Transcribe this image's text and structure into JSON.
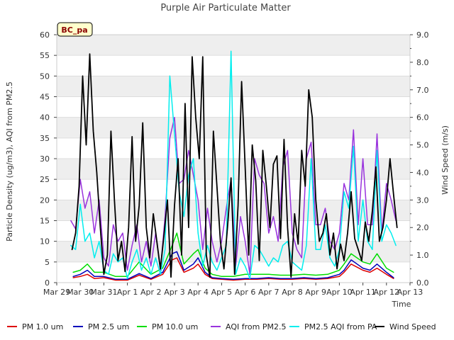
{
  "chart_data": {
    "type": "line",
    "title": "Purple Air Particulate Matter",
    "badge": "BC_pa",
    "xlabel": "Time",
    "ylabel_left": "Particle Density (ug/m3), AQI from PM2.5",
    "ylabel_right": "Wind Speed (m/s)",
    "ylim_left": [
      0,
      60
    ],
    "ylim_right": [
      0,
      9
    ],
    "yticks_left": [
      "0",
      "5",
      "10",
      "15",
      "20",
      "25",
      "30",
      "35",
      "40",
      "45",
      "50",
      "55",
      "60"
    ],
    "yticks_right": [
      "0.0",
      "1.0",
      "2.0",
      "3.0",
      "4.0",
      "5.0",
      "6.0",
      "7.0",
      "8.0",
      "9.0"
    ],
    "xlim_days": [
      0,
      15
    ],
    "xticks": [
      "Mar 29",
      "Mar 30",
      "Mar 31",
      "Apr 1",
      "Apr 2",
      "Apr 3",
      "Apr 4",
      "Apr 5",
      "Apr 6",
      "Apr 7",
      "Apr 8",
      "Apr 9",
      "Apr 10",
      "Apr 11",
      "Apr 12",
      "Apr 13"
    ],
    "series": [
      {
        "name": "PM 1.0 um",
        "color": "#dd0000",
        "axis": "left",
        "x": [
          0.7,
          1.0,
          1.3,
          1.6,
          2.0,
          2.5,
          3.0,
          3.5,
          4.0,
          4.5,
          4.9,
          5.1,
          5.4,
          5.8,
          6.0,
          6.3,
          6.6,
          7.0,
          7.5,
          8.0,
          8.5,
          9.0,
          9.5,
          10.0,
          10.5,
          11.0,
          11.5,
          12.0,
          12.2,
          12.5,
          13.0,
          13.3,
          13.6,
          14.0,
          14.3
        ],
        "y": [
          1.2,
          1.5,
          2.0,
          1.0,
          1.2,
          0.6,
          0.6,
          1.8,
          0.8,
          2.0,
          5.5,
          6.0,
          2.5,
          3.5,
          4.5,
          2.0,
          1.0,
          0.8,
          0.6,
          0.8,
          0.8,
          1.0,
          0.8,
          0.8,
          1.0,
          0.8,
          1.0,
          1.5,
          2.5,
          4.5,
          3.0,
          2.5,
          3.5,
          2.0,
          1.0
        ]
      },
      {
        "name": "PM 2.5 um",
        "color": "#0000bb",
        "axis": "left",
        "x": [
          0.7,
          1.0,
          1.3,
          1.6,
          2.0,
          2.5,
          3.0,
          3.5,
          4.0,
          4.5,
          4.9,
          5.1,
          5.4,
          5.8,
          6.0,
          6.3,
          6.6,
          7.0,
          7.5,
          8.0,
          8.5,
          9.0,
          9.5,
          10.0,
          10.5,
          11.0,
          11.5,
          12.0,
          12.2,
          12.5,
          13.0,
          13.3,
          13.6,
          14.0,
          14.3
        ],
        "y": [
          1.5,
          2.0,
          3.0,
          1.5,
          1.5,
          0.8,
          0.8,
          2.2,
          1.0,
          2.5,
          7.0,
          7.5,
          3.0,
          4.5,
          6.0,
          2.5,
          1.2,
          1.0,
          0.8,
          1.0,
          1.0,
          1.2,
          1.0,
          1.0,
          1.2,
          1.0,
          1.2,
          2.0,
          3.0,
          5.5,
          3.5,
          3.0,
          4.5,
          2.5,
          1.2
        ]
      },
      {
        "name": "PM 10.0 um",
        "color": "#00dd00",
        "axis": "left",
        "x": [
          0.7,
          1.0,
          1.3,
          1.6,
          2.0,
          2.5,
          3.0,
          3.5,
          4.0,
          4.5,
          4.9,
          5.1,
          5.4,
          5.8,
          6.0,
          6.3,
          6.6,
          7.0,
          7.5,
          8.0,
          8.5,
          9.0,
          9.5,
          10.0,
          10.5,
          11.0,
          11.5,
          12.0,
          12.2,
          12.5,
          13.0,
          13.3,
          13.6,
          14.0,
          14.3
        ],
        "y": [
          2.5,
          3.0,
          4.5,
          2.5,
          2.5,
          1.5,
          1.5,
          5.0,
          2.0,
          3.5,
          9.0,
          12.0,
          4.5,
          7.0,
          8.0,
          3.5,
          2.0,
          1.5,
          1.5,
          2.0,
          2.0,
          2.0,
          1.8,
          1.8,
          2.0,
          1.8,
          2.0,
          3.0,
          4.5,
          7.0,
          5.0,
          4.5,
          7.0,
          3.5,
          2.5
        ]
      },
      {
        "name": "AQI from PM2.5",
        "color": "#9933dd",
        "axis": "left",
        "x": [
          0.6,
          0.8,
          1.0,
          1.2,
          1.4,
          1.6,
          1.8,
          2.0,
          2.2,
          2.4,
          2.6,
          2.8,
          3.0,
          3.2,
          3.4,
          3.6,
          3.8,
          4.0,
          4.2,
          4.4,
          4.6,
          4.8,
          5.0,
          5.2,
          5.4,
          5.6,
          5.8,
          6.0,
          6.2,
          6.4,
          6.6,
          6.8,
          7.0,
          7.2,
          7.4,
          7.6,
          7.8,
          8.0,
          8.2,
          8.4,
          8.6,
          8.8,
          9.0,
          9.2,
          9.4,
          9.6,
          9.8,
          10.0,
          10.2,
          10.4,
          10.6,
          10.8,
          11.0,
          11.2,
          11.4,
          11.6,
          11.8,
          12.0,
          12.2,
          12.4,
          12.6,
          12.8,
          13.0,
          13.2,
          13.4,
          13.6,
          13.8,
          14.0,
          14.2,
          14.4
        ],
        "y": [
          15,
          13,
          25,
          18,
          22,
          12,
          20,
          6,
          4,
          14,
          10,
          12,
          3,
          9,
          14,
          5,
          10,
          4,
          12,
          3,
          16,
          35,
          40,
          24,
          25,
          32,
          26,
          20,
          8,
          18,
          10,
          5,
          10,
          18,
          25,
          4,
          16,
          10,
          2,
          30,
          26,
          24,
          12,
          16,
          10,
          28,
          32,
          12,
          8,
          6,
          30,
          34,
          14,
          14,
          18,
          10,
          8,
          12,
          24,
          20,
          37,
          14,
          30,
          14,
          14,
          36,
          12,
          24,
          20,
          15
        ]
      },
      {
        "name": "PM2.5 AQI from PA",
        "color": "#00eeee",
        "axis": "left",
        "x": [
          0.6,
          0.8,
          1.0,
          1.2,
          1.4,
          1.6,
          1.8,
          2.0,
          2.2,
          2.4,
          2.6,
          2.8,
          3.0,
          3.2,
          3.4,
          3.6,
          3.8,
          4.0,
          4.2,
          4.4,
          4.6,
          4.8,
          5.0,
          5.2,
          5.4,
          5.6,
          5.8,
          6.0,
          6.2,
          6.4,
          6.6,
          6.8,
          7.0,
          7.2,
          7.4,
          7.6,
          7.8,
          8.0,
          8.2,
          8.4,
          8.6,
          8.8,
          9.0,
          9.2,
          9.4,
          9.6,
          9.8,
          10.0,
          10.2,
          10.4,
          10.6,
          10.8,
          11.0,
          11.2,
          11.4,
          11.6,
          11.8,
          12.0,
          12.2,
          12.4,
          12.6,
          12.8,
          13.0,
          13.2,
          13.4,
          13.6,
          13.8,
          14.0,
          14.2,
          14.4
        ],
        "y": [
          9,
          8,
          19,
          10,
          12,
          6,
          10,
          3,
          2,
          7,
          5,
          6,
          1,
          5,
          8,
          3,
          6,
          2,
          6,
          2,
          8,
          50,
          36,
          22,
          16,
          26,
          30,
          12,
          4,
          9,
          5,
          3,
          6,
          9,
          56,
          2,
          6,
          4,
          1,
          9,
          8,
          6,
          4,
          6,
          5,
          9,
          10,
          5,
          4,
          3,
          9,
          30,
          8,
          8,
          14,
          6,
          4,
          8,
          22,
          18,
          33,
          10,
          20,
          10,
          8,
          32,
          10,
          14,
          12,
          9
        ]
      },
      {
        "name": "Wind Speed",
        "color": "#000000",
        "axis": "right",
        "x": [
          0.65,
          0.8,
          0.95,
          1.1,
          1.25,
          1.4,
          1.55,
          1.7,
          1.85,
          2.0,
          2.15,
          2.3,
          2.45,
          2.6,
          2.75,
          2.9,
          3.05,
          3.2,
          3.35,
          3.5,
          3.65,
          3.8,
          3.95,
          4.1,
          4.25,
          4.4,
          4.55,
          4.7,
          4.85,
          5.0,
          5.15,
          5.3,
          5.45,
          5.6,
          5.75,
          5.9,
          6.05,
          6.2,
          6.35,
          6.5,
          6.65,
          6.8,
          6.95,
          7.1,
          7.25,
          7.4,
          7.55,
          7.7,
          7.85,
          8.0,
          8.15,
          8.3,
          8.45,
          8.6,
          8.75,
          8.9,
          9.05,
          9.2,
          9.35,
          9.5,
          9.65,
          9.8,
          9.95,
          10.1,
          10.25,
          10.4,
          10.55,
          10.7,
          10.85,
          11.0,
          11.15,
          11.3,
          11.45,
          11.6,
          11.75,
          11.9,
          12.05,
          12.2,
          12.35,
          12.5,
          12.65,
          12.8,
          12.95,
          13.1,
          13.25,
          13.4,
          13.55,
          13.7,
          13.85,
          14.0,
          14.15,
          14.3,
          14.45
        ],
        "y": [
          1.2,
          1.8,
          3.5,
          7.5,
          5.0,
          8.3,
          5.5,
          4.0,
          2.0,
          0.3,
          1.0,
          5.5,
          3.0,
          0.8,
          1.5,
          0.4,
          2.0,
          5.3,
          1.5,
          2.8,
          5.8,
          2.0,
          0.9,
          2.5,
          1.5,
          0.5,
          1.7,
          3.0,
          0.2,
          2.8,
          4.5,
          1.0,
          6.5,
          2.0,
          8.2,
          6.0,
          4.5,
          8.2,
          1.0,
          0.2,
          5.5,
          3.5,
          1.5,
          0.5,
          2.0,
          3.8,
          0.3,
          2.8,
          7.3,
          4.2,
          1.0,
          5.0,
          3.7,
          0.8,
          4.8,
          3.5,
          2.0,
          4.3,
          4.6,
          1.6,
          5.2,
          2.0,
          0.2,
          2.5,
          1.4,
          4.8,
          3.5,
          7.0,
          6.0,
          3.0,
          1.5,
          1.8,
          2.5,
          1.0,
          1.8,
          0.5,
          1.4,
          0.8,
          1.8,
          3.3,
          1.6,
          1.2,
          0.8,
          2.2,
          1.5,
          2.6,
          4.2,
          1.5,
          2.0,
          3.0,
          4.5,
          3.2,
          2.0
        ]
      }
    ]
  }
}
